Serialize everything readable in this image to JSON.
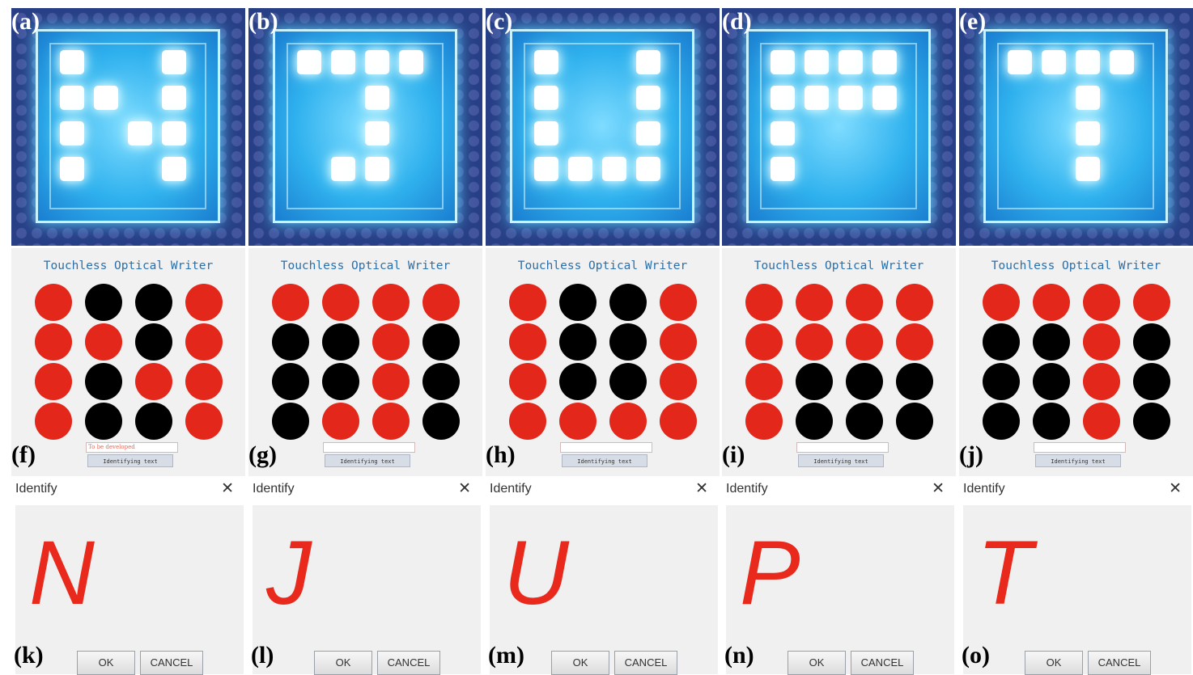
{
  "app_title": "Touchless Optical Writer",
  "identify_button_label": "Identifying text",
  "dialog": {
    "title": "Identify",
    "ok_label": "OK",
    "cancel_label": "CANCEL"
  },
  "colors": {
    "active": "#e3281b",
    "inactive": "#000000",
    "photo_bg": "#283f86",
    "led": "#ffffff"
  },
  "icons": {
    "close": "close-icon"
  },
  "columns": [
    {
      "photo_label": "(a)",
      "app_label": "(f)",
      "dialog_label": "(k)",
      "text_field_value": "To be developed",
      "letter": "N",
      "grid": [
        [
          1,
          0,
          0,
          1
        ],
        [
          1,
          1,
          0,
          1
        ],
        [
          1,
          0,
          1,
          1
        ],
        [
          1,
          0,
          0,
          1
        ]
      ]
    },
    {
      "photo_label": "(b)",
      "app_label": "(g)",
      "dialog_label": "(l)",
      "text_field_value": "",
      "letter": "J",
      "grid": [
        [
          1,
          1,
          1,
          1
        ],
        [
          0,
          0,
          1,
          0
        ],
        [
          0,
          0,
          1,
          0
        ],
        [
          0,
          1,
          1,
          0
        ]
      ]
    },
    {
      "photo_label": "(c)",
      "app_label": "(h)",
      "dialog_label": "(m)",
      "text_field_value": "",
      "letter": "U",
      "grid": [
        [
          1,
          0,
          0,
          1
        ],
        [
          1,
          0,
          0,
          1
        ],
        [
          1,
          0,
          0,
          1
        ],
        [
          1,
          1,
          1,
          1
        ]
      ]
    },
    {
      "photo_label": "(d)",
      "app_label": "(i)",
      "dialog_label": "(n)",
      "text_field_value": "",
      "letter": "P",
      "grid": [
        [
          1,
          1,
          1,
          1
        ],
        [
          1,
          1,
          1,
          1
        ],
        [
          1,
          0,
          0,
          0
        ],
        [
          1,
          0,
          0,
          0
        ]
      ]
    },
    {
      "photo_label": "(e)",
      "app_label": "(j)",
      "dialog_label": "(o)",
      "text_field_value": "",
      "letter": "T",
      "grid": [
        [
          1,
          1,
          1,
          1
        ],
        [
          0,
          0,
          1,
          0
        ],
        [
          0,
          0,
          1,
          0
        ],
        [
          0,
          0,
          1,
          0
        ]
      ]
    }
  ]
}
